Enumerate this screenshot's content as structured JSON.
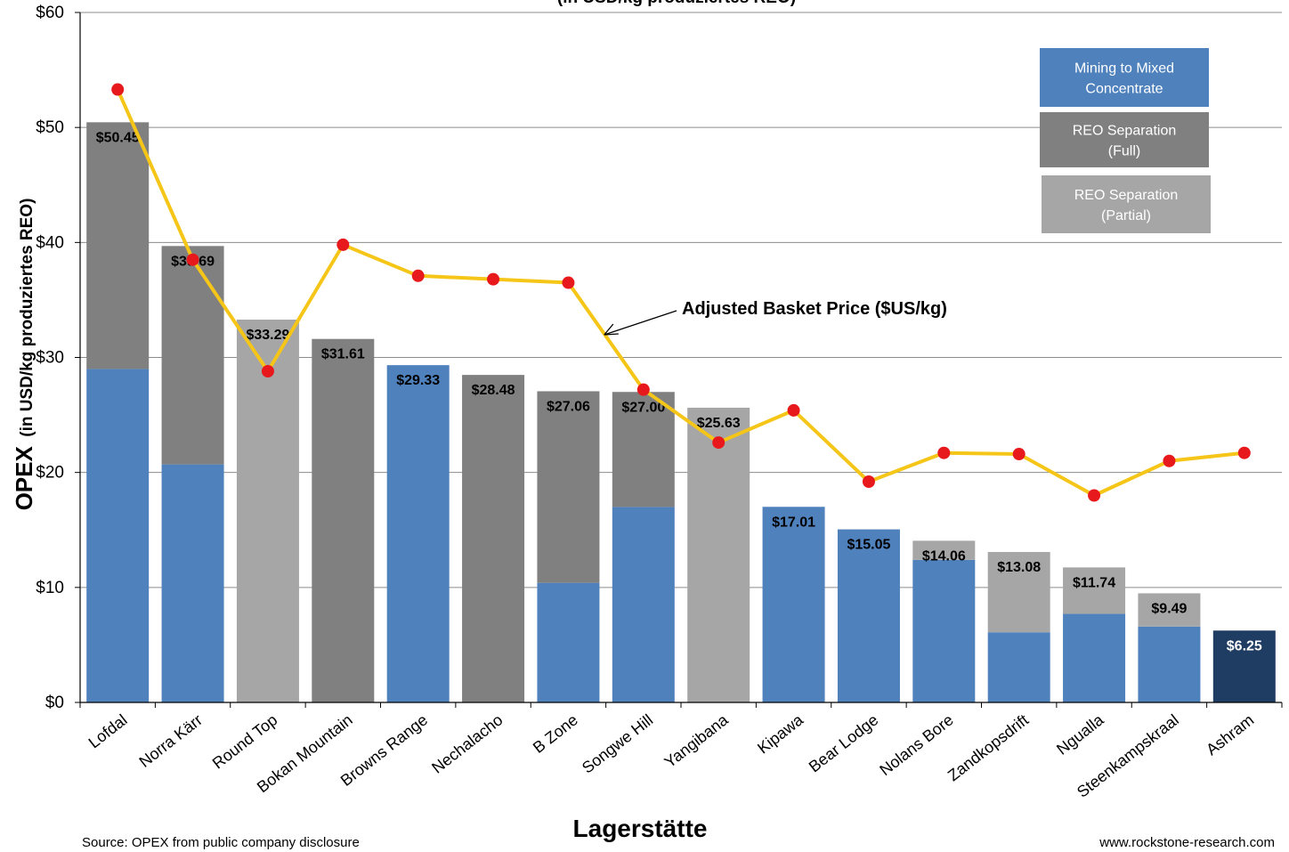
{
  "chart_data": {
    "type": "bar",
    "title": "(in USD/kg produziertes REO)",
    "xlabel": "Lagerstätte",
    "ylabel_main": "OPEX",
    "ylabel_sub": "(in USD/kg produziertes  REO)",
    "ylim": [
      0,
      60
    ],
    "yticks": [
      "$0",
      "$10",
      "$20",
      "$30",
      "$40",
      "$50",
      "$60"
    ],
    "grid": true,
    "legend_position": "top-right",
    "categories": [
      "Lofdal",
      "Norra Kärr",
      "Round Top",
      "Bokan Mountain",
      "Browns Range",
      "Nechalacho",
      "B Zone",
      "Songwe Hill",
      "Yangibana",
      "Kipawa",
      "Bear Lodge",
      "Nolans Bore",
      "Zandkopsdrift",
      "Ngualla",
      "Steenkampskraal",
      "Ashram"
    ],
    "series": [
      {
        "name": "Mining to Mixed Concentrate",
        "color": "#4f81bd",
        "values": [
          29.0,
          20.7,
          0,
          0,
          29.33,
          0,
          10.4,
          17.0,
          0,
          17.01,
          15.05,
          12.4,
          6.1,
          7.7,
          6.6,
          0
        ]
      },
      {
        "name": "REO Separation (Full)",
        "color": "#808080",
        "values": [
          21.45,
          18.99,
          0,
          31.61,
          0,
          28.48,
          16.66,
          10.0,
          0,
          0,
          0,
          0,
          0,
          0,
          0,
          0
        ]
      },
      {
        "name": "REO Separation (Partial)",
        "color": "#a6a6a6",
        "values": [
          0,
          0,
          33.29,
          0,
          0,
          0,
          0,
          0,
          25.63,
          0,
          0,
          1.66,
          6.98,
          4.04,
          2.89,
          0
        ]
      },
      {
        "name": "Ashram",
        "color": "#1f3c63",
        "values": [
          0,
          0,
          0,
          0,
          0,
          0,
          0,
          0,
          0,
          0,
          0,
          0,
          0,
          0,
          0,
          6.25
        ]
      }
    ],
    "totals": [
      50.45,
      39.69,
      33.29,
      31.61,
      29.33,
      28.48,
      27.06,
      27.0,
      25.63,
      17.01,
      15.05,
      14.06,
      13.08,
      11.74,
      9.49,
      6.25
    ],
    "total_labels": [
      "$50.45",
      "$39.69",
      "$33.29",
      "$31.61",
      "$29.33",
      "$28.48",
      "$27.06",
      "$27.00",
      "$25.63",
      "$17.01",
      "$15.05",
      "$14.06",
      "$13.08",
      "$11.74",
      "$9.49",
      "$6.25"
    ],
    "basket_price": {
      "name": "Adjusted Basket Price ($US/kg)",
      "line_color": "#f5c518",
      "marker_color": "#e8191c",
      "values": [
        53.3,
        38.5,
        28.8,
        39.8,
        37.1,
        36.8,
        36.5,
        27.2,
        22.6,
        25.4,
        19.2,
        21.7,
        21.6,
        18.0,
        21.0,
        21.7
      ]
    },
    "legend": [
      {
        "label": "Mining to Mixed\nConcentrate",
        "color": "#4f81bd"
      },
      {
        "label": "REO Separation\n(Full)",
        "color": "#808080"
      },
      {
        "label": "REO Separation\n(Partial)",
        "color": "#a6a6a6"
      }
    ],
    "source_note": "Source: OPEX from public company disclosure",
    "website": "www.rockstone-research.com"
  }
}
